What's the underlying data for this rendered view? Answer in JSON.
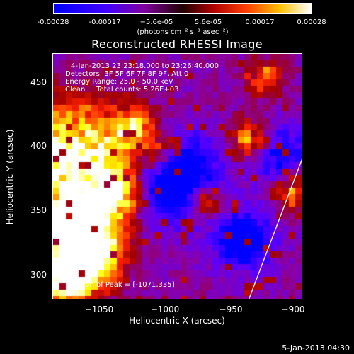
{
  "colorbar": {
    "ticks": [
      "-0.00028",
      "-0.00017",
      "−5.6e-05",
      "5.6e-05",
      "0.00017",
      "0.00028"
    ],
    "unit_text": "(photons cm⁻² s⁻¹ asec⁻²)"
  },
  "chart_data": {
    "type": "heatmap",
    "title": "Reconstructed RHESSI Image",
    "xlabel": "Heliocentric X (arcsec)",
    "ylabel": "Heliocentric Y (arcsec)",
    "xlim": [
      -1085,
      -893
    ],
    "ylim": [
      280,
      475
    ],
    "x_ticks": [
      "−1050",
      "−1000",
      "−950",
      "−900"
    ],
    "y_ticks": [
      "450",
      "400",
      "350",
      "300"
    ],
    "value_range": [
      -0.00028,
      0.00028
    ],
    "colormap": [
      "#0000ff",
      "#5a00ff",
      "#8a00a8",
      "#a00000",
      "#ff2000",
      "#ff9000",
      "#ffff00",
      "#ffffff"
    ]
  },
  "annotations": {
    "time_range": "4-Jan-2013 23:23:18.000 to 23:26:40.000",
    "detectors": "Detectors: 3F 5F 6F 7F 8F 9F, Att 0",
    "energy": "Energy Range: 25.0 - 50.0 keV",
    "clean": "Clean     Total counts: 5.26E+03",
    "peak": "Position of Peak = [-1071,335]"
  },
  "timestamp": "5-Jan-2013 04:30"
}
